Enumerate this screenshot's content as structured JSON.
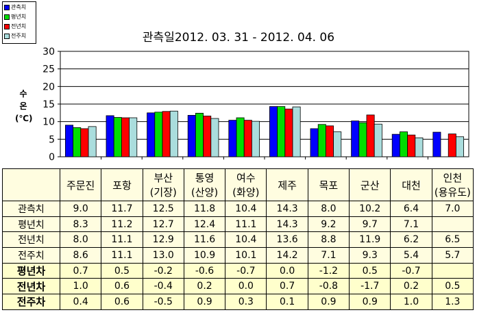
{
  "chart_data": {
    "type": "bar",
    "title": "관측일2012. 03. 31  -  2012. 04. 06",
    "ylabel": "수\n온\n(℃)",
    "ylim": [
      0,
      30
    ],
    "yticks": [
      0,
      5,
      10,
      15,
      20,
      25,
      30
    ],
    "grid": true,
    "legend_position": "top-left",
    "categories": [
      "주문진",
      "포항",
      "부산 (기장)",
      "통영 (산양)",
      "여수 (화양)",
      "제주",
      "목포",
      "군산",
      "대천",
      "인천 (용유도)"
    ],
    "series": [
      {
        "name": "관측치",
        "color": "#0000ff",
        "values": [
          9.0,
          11.7,
          12.5,
          11.8,
          10.4,
          14.3,
          8.0,
          10.2,
          6.4,
          7.0
        ]
      },
      {
        "name": "평년치",
        "color": "#00dd00",
        "values": [
          8.3,
          11.2,
          12.7,
          12.4,
          11.1,
          14.3,
          9.2,
          9.7,
          7.1,
          null
        ]
      },
      {
        "name": "전년치",
        "color": "#ff0000",
        "values": [
          8.0,
          11.1,
          12.9,
          11.6,
          10.4,
          13.6,
          8.8,
          11.9,
          6.2,
          6.5
        ]
      },
      {
        "name": "전주치",
        "color": "#aadddd",
        "values": [
          8.6,
          11.1,
          13.0,
          10.9,
          10.1,
          14.2,
          7.1,
          9.3,
          5.4,
          5.7
        ]
      }
    ]
  },
  "table": {
    "header": [
      "",
      "주문진",
      "포항",
      "부산\n(기장)",
      "통영\n(산양)",
      "여수\n(화양)",
      "제주",
      "목포",
      "군산",
      "대천",
      "인천\n(용유도)"
    ],
    "rows": [
      {
        "label": "관측치",
        "bold": false,
        "cells": [
          "9.0",
          "11.7",
          "12.5",
          "11.8",
          "10.4",
          "14.3",
          "8.0",
          "10.2",
          "6.4",
          "7.0"
        ]
      },
      {
        "label": "평년치",
        "bold": false,
        "cells": [
          "8.3",
          "11.2",
          "12.7",
          "12.4",
          "11.1",
          "14.3",
          "9.2",
          "9.7",
          "7.1",
          ""
        ]
      },
      {
        "label": "전년치",
        "bold": false,
        "cells": [
          "8.0",
          "11.1",
          "12.9",
          "11.6",
          "10.4",
          "13.6",
          "8.8",
          "11.9",
          "6.2",
          "6.5"
        ]
      },
      {
        "label": "전주치",
        "bold": false,
        "cells": [
          "8.6",
          "11.1",
          "13.0",
          "10.9",
          "10.1",
          "14.2",
          "7.1",
          "9.3",
          "5.4",
          "5.7"
        ]
      },
      {
        "label": "평년차",
        "bold": true,
        "cells": [
          "0.7",
          "0.5",
          "-0.2",
          "-0.6",
          "-0.7",
          "0.0",
          "-1.2",
          "0.5",
          "-0.7",
          ""
        ]
      },
      {
        "label": "전년차",
        "bold": true,
        "cells": [
          "1.0",
          "0.6",
          "-0.4",
          "0.2",
          "0.0",
          "0.7",
          "-0.8",
          "-1.7",
          "0.2",
          "0.5"
        ]
      },
      {
        "label": "전주차",
        "bold": true,
        "cells": [
          "0.4",
          "0.6",
          "-0.5",
          "0.9",
          "0.3",
          "0.1",
          "0.9",
          "0.9",
          "1.0",
          "1.3"
        ]
      }
    ]
  }
}
